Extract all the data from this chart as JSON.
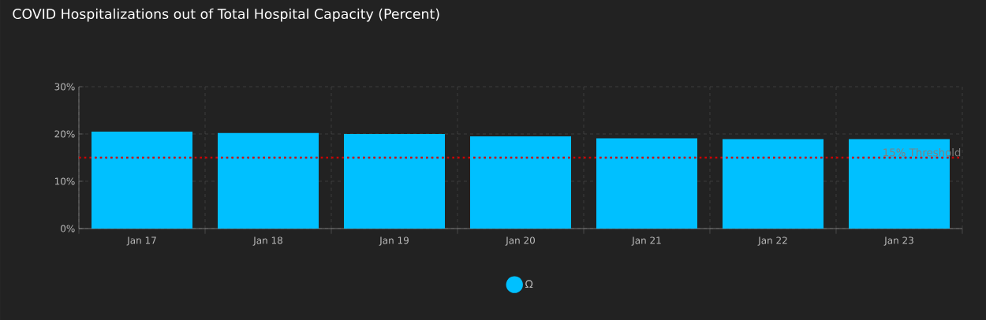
{
  "chart_data": {
    "type": "bar",
    "title": "COVID Hospitalizations out of Total Hospital Capacity (Percent)",
    "categories": [
      "Jan 17",
      "Jan 18",
      "Jan 19",
      "Jan 20",
      "Jan 21",
      "Jan 22",
      "Jan 23"
    ],
    "series": [
      {
        "name": "Ω",
        "color": "#00c0ff",
        "values": [
          20.5,
          20.2,
          20.0,
          19.5,
          19.1,
          18.9,
          18.9
        ]
      }
    ],
    "ylim": [
      0,
      30
    ],
    "yticks": [
      {
        "value": 0,
        "label": "0%"
      },
      {
        "value": 10,
        "label": "10%"
      },
      {
        "value": 20,
        "label": "20%"
      },
      {
        "value": 30,
        "label": "30%"
      }
    ],
    "ref_lines": [
      {
        "axis": "y",
        "value": 15,
        "label": "15% Threshold",
        "color": "#cc0000",
        "line_style": "dotted"
      }
    ],
    "grid": true,
    "legend": "bottom"
  }
}
